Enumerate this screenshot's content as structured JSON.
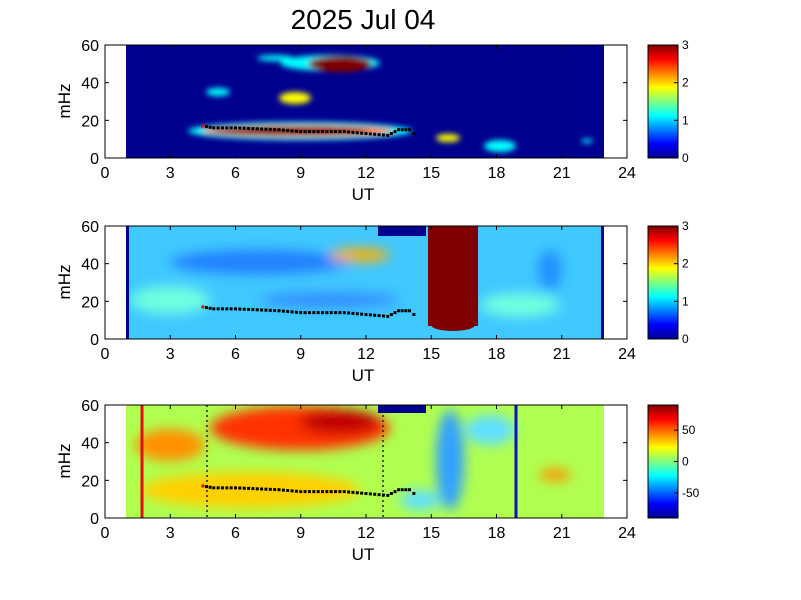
{
  "chart_data": {
    "type": "heatmap",
    "title": "2025 Jul 04",
    "panels": [
      {
        "type": "heatmap",
        "xlabel": "UT",
        "ylabel": "mHz",
        "xlim": [
          0,
          24
        ],
        "ylim": [
          0,
          60
        ],
        "x_ticks": [
          "0",
          "3",
          "6",
          "9",
          "12",
          "15",
          "18",
          "21",
          "24"
        ],
        "y_ticks": [
          "0",
          "20",
          "40",
          "60"
        ],
        "data_range_ut": [
          1,
          23
        ],
        "colorbar": {
          "range": [
            0,
            3
          ],
          "ticks": [
            "0",
            "1",
            "2",
            "3"
          ]
        },
        "features": [
          {
            "ut": [
              4.3,
              14.3
            ],
            "mhz": [
              10,
              20
            ],
            "level": 3
          },
          {
            "ut": [
              9.5,
              12.5
            ],
            "mhz": [
              45,
              53
            ],
            "level": 3
          },
          {
            "ut": [
              8.5,
              10.5
            ],
            "mhz": [
              31,
              34
            ],
            "level": 2
          },
          {
            "ut": [
              3.5,
              5
            ],
            "mhz": [
              34,
              37
            ],
            "level": 1.3
          },
          {
            "ut": [
              7,
              9
            ],
            "mhz": [
              52,
              55
            ],
            "level": 1.2
          },
          {
            "ut": [
              15.3,
              16.3
            ],
            "mhz": [
              10,
              13
            ],
            "level": 2.5
          },
          {
            "ut": [
              17.5,
              19.5
            ],
            "mhz": [
              3,
              10
            ],
            "level": 1.3
          },
          {
            "ut": [
              22,
              22.5
            ],
            "mhz": [
              9,
              11
            ],
            "level": 1.2
          }
        ],
        "trace_markers": [
          [
            4.5,
            17
          ],
          [
            5,
            16
          ],
          [
            6,
            16
          ],
          [
            7,
            15.5
          ],
          [
            8,
            15
          ],
          [
            9,
            14
          ],
          [
            10,
            14
          ],
          [
            11,
            14
          ],
          [
            12,
            13
          ],
          [
            13,
            12
          ],
          [
            13.5,
            15
          ],
          [
            14,
            15
          ],
          [
            14.2,
            13
          ]
        ]
      },
      {
        "type": "heatmap",
        "xlabel": "UT",
        "ylabel": "mHz",
        "xlim": [
          0,
          24
        ],
        "ylim": [
          0,
          60
        ],
        "x_ticks": [
          "0",
          "3",
          "6",
          "9",
          "12",
          "15",
          "18",
          "21",
          "24"
        ],
        "y_ticks": [
          "0",
          "20",
          "40",
          "60"
        ],
        "data_range_ut": [
          1,
          23
        ],
        "colorbar": {
          "range": [
            0,
            3
          ],
          "ticks": [
            "0",
            "1",
            "2",
            "3"
          ]
        },
        "features": [
          {
            "ut": [
              15.5,
              17
            ],
            "mhz": [
              5,
              60
            ],
            "level": 3
          },
          {
            "ut": [
              10.5,
              13
            ],
            "mhz": [
              42,
              48
            ],
            "level": 2
          },
          {
            "ut": [
              12.5,
              14.5
            ],
            "mhz": [
              54,
              60
            ],
            "level": 0
          },
          {
            "ut": [
              3,
              9
            ],
            "mhz": [
              35,
              43
            ],
            "level": 0.6
          }
        ],
        "trace_markers": [
          [
            4.5,
            17
          ],
          [
            5,
            16
          ],
          [
            6,
            16
          ],
          [
            7,
            15.5
          ],
          [
            8,
            15
          ],
          [
            9,
            14
          ],
          [
            10,
            14
          ],
          [
            11,
            14
          ],
          [
            12,
            13
          ],
          [
            13,
            12
          ],
          [
            13.5,
            15
          ],
          [
            14,
            15
          ],
          [
            14.2,
            13
          ]
        ]
      },
      {
        "type": "heatmap",
        "xlabel": "UT",
        "ylabel": "mHz",
        "xlim": [
          0,
          24
        ],
        "ylim": [
          0,
          60
        ],
        "x_ticks": [
          "0",
          "3",
          "6",
          "9",
          "12",
          "15",
          "18",
          "21",
          "24"
        ],
        "y_ticks": [
          "0",
          "20",
          "40",
          "60"
        ],
        "data_range_ut": [
          1,
          23
        ],
        "colorbar": {
          "range": [
            -90,
            90
          ],
          "ticks": [
            "-50",
            "0",
            "50"
          ]
        },
        "features": [
          {
            "ut": [
              5,
              12.5
            ],
            "mhz": [
              38,
              58
            ],
            "level": 80
          },
          {
            "ut": [
              20,
              21.8
            ],
            "mhz": [
              20,
              25
            ],
            "level": 55
          },
          {
            "ut": [
              15.5,
              16.5
            ],
            "mhz": [
              0,
              58
            ],
            "level": -40
          },
          {
            "ut": [
              12.5,
              14.5
            ],
            "mhz": [
              54,
              60
            ],
            "level": -90
          }
        ],
        "vertical_lines": [
          {
            "ut": 1.8,
            "style": "solid",
            "color": "#e01010"
          },
          {
            "ut": 4.8,
            "style": "dotted",
            "color": "#202020"
          },
          {
            "ut": 12.8,
            "style": "dotted",
            "color": "#202020"
          },
          {
            "ut": 19,
            "style": "solid",
            "color": "#1010c0"
          }
        ],
        "trace_markers": [
          [
            4.5,
            17
          ],
          [
            5,
            16
          ],
          [
            6,
            16
          ],
          [
            7,
            15.5
          ],
          [
            8,
            15
          ],
          [
            9,
            14
          ],
          [
            10,
            14
          ],
          [
            11,
            14
          ],
          [
            12,
            13
          ],
          [
            13,
            12
          ],
          [
            13.5,
            15
          ],
          [
            14,
            15
          ],
          [
            14.2,
            13
          ]
        ]
      }
    ]
  }
}
